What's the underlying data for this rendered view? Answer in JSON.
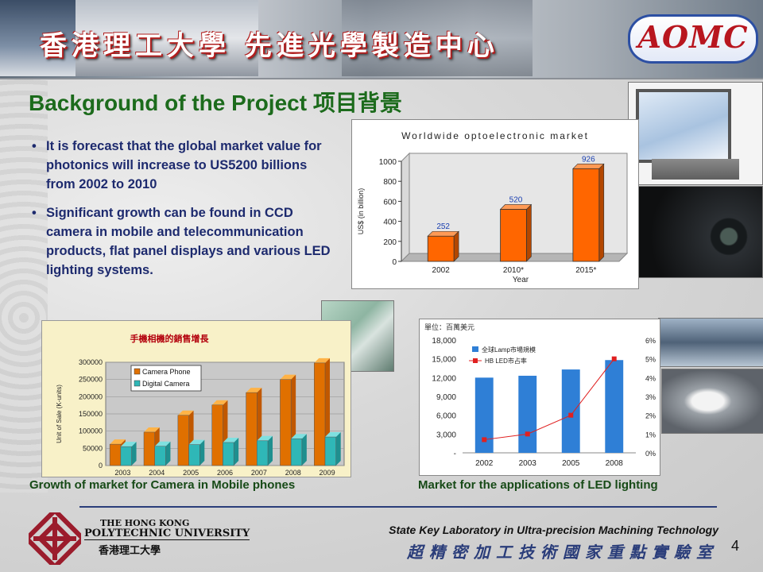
{
  "banner": {
    "title": "香港理工大學 先進光學製造中心",
    "logo_text": "AOMC"
  },
  "slide": {
    "title": "Background of the Project 项目背景",
    "bullets": [
      "It is forecast that the global market value for photonics will increase to US5200 billions from 2002 to 2010",
      "Significant growth can be found in CCD camera in mobile and telecommunication products, flat panel displays and various LED lighting systems."
    ],
    "bullet_symbol": "•"
  },
  "captions": {
    "camera": "Growth of market for Camera in Mobile phones",
    "led": "Market for the applications of LED lighting"
  },
  "footer": {
    "university_en_line1": "THE HONG KONG",
    "university_en_line2": "POLYTECHNIC UNIVERSITY",
    "university_zh": "香港理工大學",
    "lab_en": "State Key Laboratory in Ultra-precision Machining Technology",
    "lab_zh": "超精密加工技術國家重點實驗室",
    "page_number": "4"
  },
  "photos": [
    {
      "id": "tv",
      "icon": "rear-projection-tv-photo"
    },
    {
      "id": "projector",
      "icon": "projector-photo"
    },
    {
      "id": "phone",
      "icon": "camera-phone-photo"
    },
    {
      "id": "car1",
      "icon": "car-headlight-photo"
    },
    {
      "id": "car2",
      "icon": "headlamp-photo"
    }
  ],
  "colors": {
    "title_green": "#1c6b1c",
    "bullet_blue": "#1d2a6e",
    "bar_orange": "#ff6600",
    "bar_cyan": "#33cccc",
    "led_bar_blue": "#2f7fd6",
    "led_line_red": "#e02020"
  },
  "chart_data": [
    {
      "type": "bar",
      "title": "Worldwide optoelectronic market",
      "categories": [
        "2002",
        "2010*",
        "2015*"
      ],
      "values": [
        252,
        520,
        926
      ],
      "data_labels": [
        "252",
        "520",
        "926"
      ],
      "xlabel": "Year",
      "ylabel": "US$ (in billion)",
      "ylim": [
        0,
        1000
      ],
      "yticks": [
        "0",
        "200",
        "400",
        "600",
        "800",
        "1000"
      ],
      "grid": false,
      "legend": "none"
    },
    {
      "type": "bar",
      "title": "手機相機的銷售增長",
      "categories": [
        "2003",
        "2004",
        "2005",
        "2006",
        "2007",
        "2008",
        "2009"
      ],
      "series": [
        {
          "name": "Camera Phone",
          "values": [
            62000,
            97000,
            146000,
            176000,
            212000,
            250000,
            298000
          ]
        },
        {
          "name": "Digital Camera",
          "values": [
            55000,
            56000,
            61000,
            67000,
            72000,
            78000,
            83000
          ]
        }
      ],
      "xlabel": "",
      "ylabel": "Unit of Sale (K-units)",
      "ylim": [
        0,
        300000
      ],
      "yticks": [
        "0",
        "50000",
        "100000",
        "150000",
        "200000",
        "250000",
        "300000"
      ],
      "grid": true,
      "legend": "top-left"
    },
    {
      "type": "bar",
      "title": "單位：百萬美元",
      "categories": [
        "2002",
        "2003",
        "2005",
        "2008"
      ],
      "series": [
        {
          "name": "全球Lamp市場規模",
          "values": [
            12000,
            12300,
            13300,
            14800
          ]
        },
        {
          "name": "HB LED市占率",
          "values": [
            0.7,
            1.0,
            2.0,
            5.0
          ],
          "kind": "line",
          "unit": "%"
        }
      ],
      "ylim_left": [
        0,
        18000
      ],
      "yticks_left": [
        "-",
        "3,000",
        "6,000",
        "9,000",
        "12,000",
        "15,000",
        "18,000"
      ],
      "ylim_right": [
        0,
        6
      ],
      "yticks_right": [
        "0%",
        "1%",
        "2%",
        "3%",
        "4%",
        "5%",
        "6%"
      ],
      "legend": "top-left",
      "grid": false
    }
  ]
}
